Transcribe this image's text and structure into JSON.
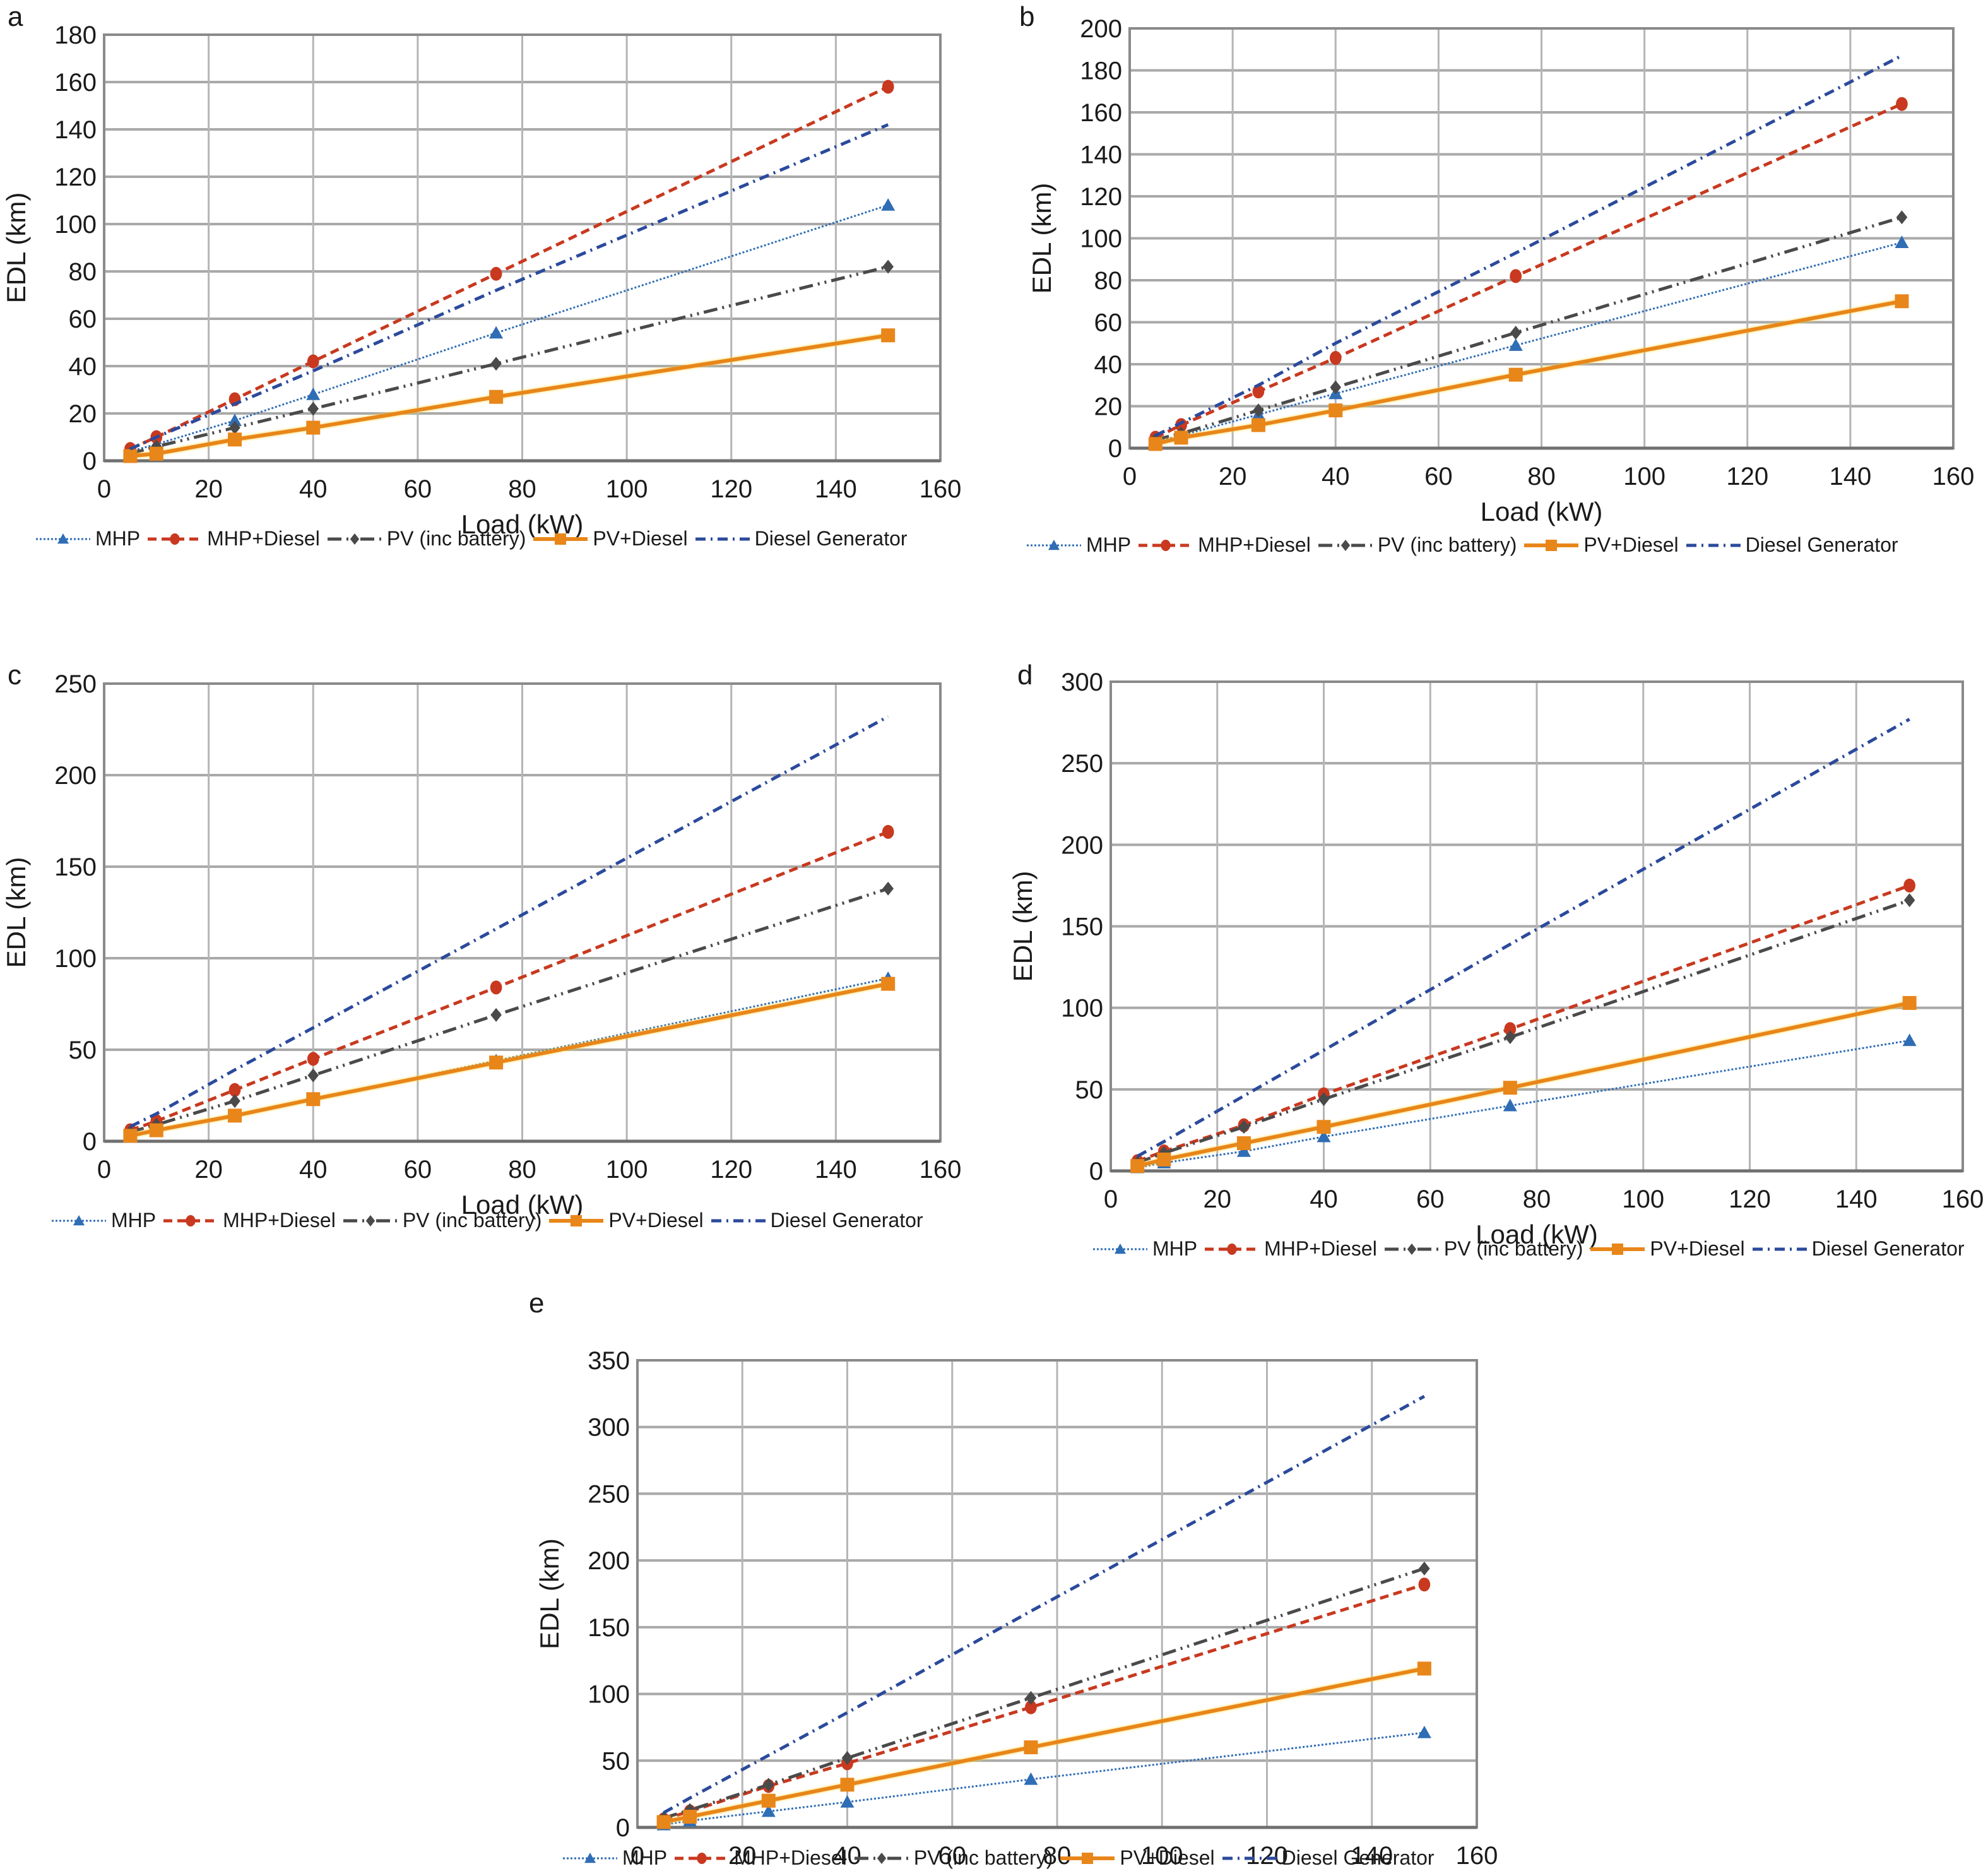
{
  "figure": {
    "legend_labels": [
      "MHP",
      "MHP+Diesel",
      "PV (inc battery)",
      "PV+Diesel",
      "Diesel Generator"
    ]
  },
  "series_styles": [
    {
      "name": "MHP",
      "color": "#2f6db5",
      "marker": "triangle",
      "dash": "dotted"
    },
    {
      "name": "MHP+Diesel",
      "color": "#c8391f",
      "marker": "circle",
      "dash": "dashed"
    },
    {
      "name": "PV (inc battery)",
      "color": "#4a4a4a",
      "marker": "diamond",
      "dash": "dash-dot-dot"
    },
    {
      "name": "PV+Diesel",
      "color": "#e8861a",
      "marker": "square",
      "dash": "solid"
    },
    {
      "name": "Diesel Generator",
      "color": "#2b4a9c",
      "marker": "none",
      "dash": "dash-dot"
    }
  ],
  "chart_data": [
    {
      "panel": "a",
      "type": "line",
      "xlabel": "Load (kW)",
      "ylabel": "EDL (km)",
      "xlim": [
        0,
        160
      ],
      "ylim": [
        0,
        180
      ],
      "xticks": [
        0,
        20,
        40,
        60,
        80,
        100,
        120,
        140,
        160
      ],
      "yticks": [
        0,
        20,
        40,
        60,
        80,
        100,
        120,
        140,
        160,
        180
      ],
      "grid": true,
      "legend": "bottom",
      "x": [
        5,
        10,
        25,
        40,
        75,
        150
      ],
      "series": [
        {
          "name": "MHP",
          "values": [
            4,
            7,
            17,
            28,
            54,
            108
          ]
        },
        {
          "name": "MHP+Diesel",
          "values": [
            5,
            10,
            26,
            42,
            79,
            158
          ]
        },
        {
          "name": "PV (inc battery)",
          "values": [
            3,
            6,
            14,
            22,
            41,
            82
          ]
        },
        {
          "name": "PV+Diesel",
          "values": [
            2,
            3,
            9,
            14,
            27,
            53
          ]
        },
        {
          "name": "Diesel Generator",
          "values": [
            5,
            10,
            24,
            38,
            72,
            142
          ]
        }
      ]
    },
    {
      "panel": "b",
      "type": "line",
      "xlabel": "Load (kW)",
      "ylabel": "EDL (km)",
      "xlim": [
        0,
        160
      ],
      "ylim": [
        0,
        200
      ],
      "xticks": [
        0,
        20,
        40,
        60,
        80,
        100,
        120,
        140,
        160
      ],
      "yticks": [
        0,
        20,
        40,
        60,
        80,
        100,
        120,
        140,
        160,
        180,
        200
      ],
      "grid": true,
      "legend": "bottom",
      "x": [
        5,
        10,
        25,
        40,
        75,
        150
      ],
      "series": [
        {
          "name": "MHP",
          "values": [
            3,
            6,
            16,
            26,
            49,
            98
          ]
        },
        {
          "name": "MHP+Diesel",
          "values": [
            5,
            11,
            27,
            43,
            82,
            164
          ]
        },
        {
          "name": "PV (inc battery)",
          "values": [
            4,
            7,
            18,
            29,
            55,
            110
          ]
        },
        {
          "name": "PV+Diesel",
          "values": [
            2,
            5,
            11,
            18,
            35,
            70
          ]
        },
        {
          "name": "Diesel Generator",
          "values": [
            6,
            12,
            30,
            50,
            93,
            187
          ]
        }
      ]
    },
    {
      "panel": "c",
      "type": "line",
      "xlabel": "Load (kW)",
      "ylabel": "EDL (km)",
      "xlim": [
        0,
        160
      ],
      "ylim": [
        0,
        250
      ],
      "xticks": [
        0,
        20,
        40,
        60,
        80,
        100,
        120,
        140,
        160
      ],
      "yticks": [
        0,
        50,
        100,
        150,
        200,
        250
      ],
      "grid": true,
      "legend": "bottom",
      "x": [
        5,
        10,
        25,
        40,
        75,
        150
      ],
      "series": [
        {
          "name": "MHP",
          "values": [
            3,
            6,
            14,
            23,
            44,
            89
          ]
        },
        {
          "name": "MHP+Diesel",
          "values": [
            6,
            11,
            28,
            45,
            84,
            169
          ]
        },
        {
          "name": "PV (inc battery)",
          "values": [
            5,
            9,
            22,
            36,
            69,
            138
          ]
        },
        {
          "name": "PV+Diesel",
          "values": [
            3,
            6,
            14,
            23,
            43,
            86
          ]
        },
        {
          "name": "Diesel Generator",
          "values": [
            8,
            15,
            39,
            62,
            116,
            232
          ]
        }
      ]
    },
    {
      "panel": "d",
      "type": "line",
      "xlabel": "Load (kW)",
      "ylabel": "EDL (km)",
      "xlim": [
        0,
        160
      ],
      "ylim": [
        0,
        300
      ],
      "xticks": [
        0,
        20,
        40,
        60,
        80,
        100,
        120,
        140,
        160
      ],
      "yticks": [
        0,
        50,
        100,
        150,
        200,
        250,
        300
      ],
      "grid": true,
      "legend": "bottom",
      "x": [
        5,
        10,
        25,
        40,
        75,
        150
      ],
      "series": [
        {
          "name": "MHP",
          "values": [
            2,
            5,
            12,
            21,
            40,
            80
          ]
        },
        {
          "name": "MHP+Diesel",
          "values": [
            6,
            12,
            28,
            47,
            87,
            175
          ]
        },
        {
          "name": "PV (inc battery)",
          "values": [
            5,
            11,
            27,
            44,
            82,
            166
          ]
        },
        {
          "name": "PV+Diesel",
          "values": [
            3,
            7,
            17,
            27,
            51,
            103
          ]
        },
        {
          "name": "Diesel Generator",
          "values": [
            9,
            18,
            46,
            74,
            139,
            277
          ]
        }
      ]
    },
    {
      "panel": "e",
      "type": "line",
      "xlabel": "Load (kW)",
      "ylabel": "EDL (km)",
      "xlim": [
        0,
        160
      ],
      "ylim": [
        0,
        350
      ],
      "xticks": [
        0,
        20,
        40,
        60,
        80,
        100,
        120,
        140,
        160
      ],
      "yticks": [
        0,
        50,
        100,
        150,
        200,
        250,
        300,
        350
      ],
      "grid": true,
      "legend": "bottom",
      "x": [
        5,
        10,
        25,
        40,
        75,
        150
      ],
      "series": [
        {
          "name": "MHP",
          "values": [
            2,
            5,
            12,
            19,
            36,
            71
          ]
        },
        {
          "name": "MHP+Diesel",
          "values": [
            6,
            12,
            31,
            48,
            90,
            182
          ]
        },
        {
          "name": "PV (inc battery)",
          "values": [
            7,
            13,
            32,
            52,
            97,
            194
          ]
        },
        {
          "name": "PV+Diesel",
          "values": [
            4,
            8,
            20,
            32,
            60,
            119
          ]
        },
        {
          "name": "Diesel Generator",
          "values": [
            11,
            22,
            54,
            86,
            162,
            323
          ]
        }
      ]
    }
  ]
}
